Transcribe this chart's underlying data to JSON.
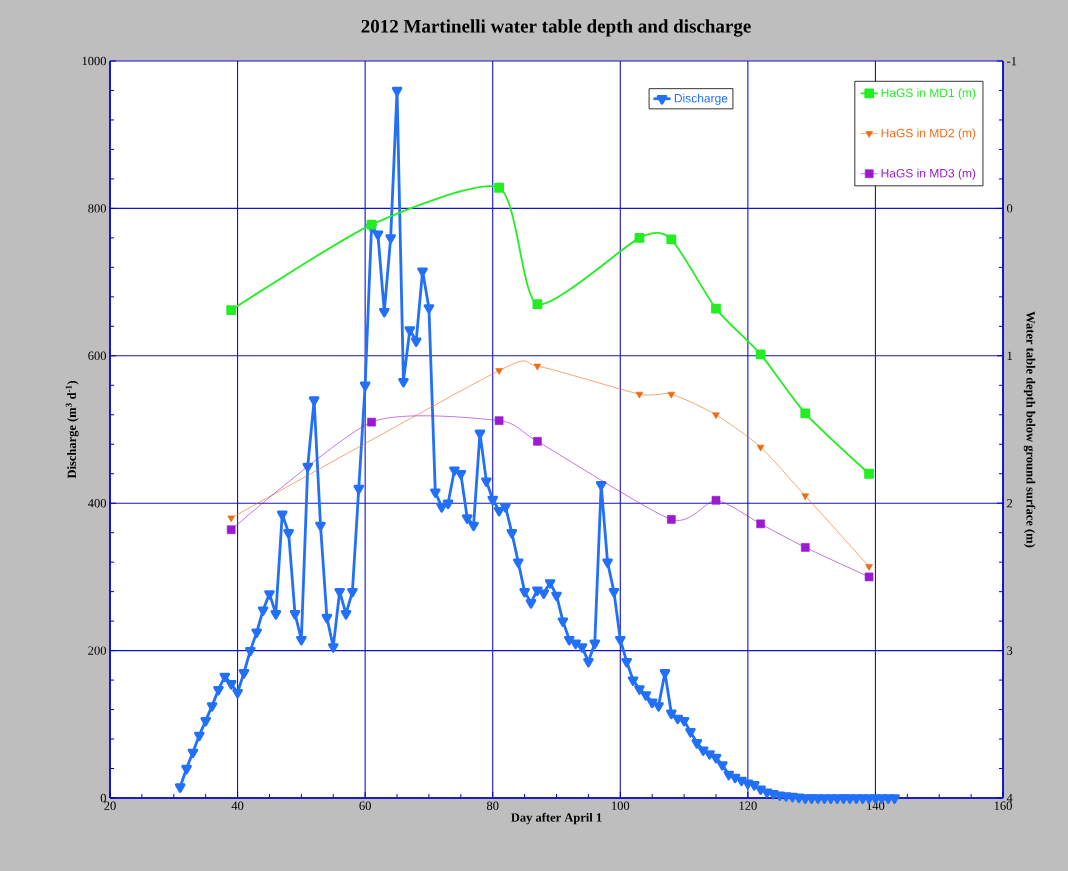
{
  "chart_data": {
    "type": "line",
    "title": "2012 Martinelli water table depth and discharge",
    "xlabel": "Day after April 1",
    "ylabel": "Discharge (m$^{3}$ d$^{-1}$)",
    "y2label": "Water table depth below ground surface  (m)",
    "xlim": [
      20,
      160
    ],
    "xticks": [
      20,
      40,
      60,
      80,
      100,
      120,
      140,
      160
    ],
    "ylim": [
      0,
      1000
    ],
    "yticks": [
      0,
      200,
      400,
      600,
      800,
      1000
    ],
    "y2lim": [
      4,
      -1
    ],
    "y2ticks": [
      -1,
      0,
      1,
      2,
      3,
      4
    ],
    "grid": true,
    "legend": "top right",
    "series": [
      {
        "name": "Discharge",
        "color": "#2270f8",
        "marker": "triangle",
        "x": [
          31,
          32,
          33,
          34,
          35,
          36,
          37,
          38,
          39,
          40,
          41,
          42,
          43,
          44,
          45,
          46,
          47,
          48,
          49,
          50,
          51,
          52,
          53,
          54,
          55,
          56,
          57,
          58,
          59,
          60,
          61,
          62,
          63,
          64,
          65,
          66,
          67,
          68,
          69,
          70,
          71,
          72,
          73,
          74,
          75,
          76,
          77,
          78,
          79,
          80,
          81,
          82,
          83,
          84,
          85,
          86,
          87,
          88,
          89,
          90,
          91,
          92,
          93,
          94,
          95,
          96,
          97,
          98,
          99,
          100,
          101,
          102,
          103,
          104,
          105,
          106,
          107,
          108,
          109,
          110,
          111,
          112,
          113,
          114,
          115,
          116,
          117,
          118,
          119,
          120,
          121,
          122,
          123,
          124,
          125,
          126,
          127,
          128,
          129,
          130,
          131,
          132,
          133,
          134,
          135,
          136,
          137,
          138,
          139,
          140,
          141,
          142,
          143
        ],
        "values": [
          15,
          40,
          62,
          85,
          105,
          125,
          147,
          165,
          155,
          143,
          170,
          200,
          225,
          255,
          277,
          250,
          385,
          360,
          250,
          215,
          450,
          540,
          370,
          245,
          205,
          280,
          250,
          280,
          420,
          560,
          775,
          765,
          660,
          760,
          960,
          565,
          635,
          620,
          715,
          665,
          415,
          395,
          400,
          445,
          440,
          380,
          370,
          495,
          430,
          405,
          390,
          395,
          360,
          320,
          280,
          265,
          282,
          278,
          292,
          275,
          240,
          215,
          210,
          205,
          185,
          210,
          425,
          320,
          280,
          215,
          185,
          160,
          148,
          140,
          130,
          125,
          170,
          115,
          108,
          105,
          90,
          75,
          65,
          60,
          55,
          45,
          32,
          28,
          24,
          20,
          18,
          12,
          8,
          6,
          4,
          3,
          2,
          1,
          0,
          0,
          0,
          0,
          0,
          0,
          0,
          0,
          0,
          0,
          0,
          0,
          0,
          0,
          0
        ]
      },
      {
        "name": "HaGS in MD1 (m)",
        "color": "#22ee22",
        "marker": "square",
        "axis": "y2",
        "x": [
          39,
          61,
          81,
          87,
          103,
          108,
          115,
          122,
          129,
          139
        ],
        "values": [
          0.69,
          0.11,
          -0.14,
          0.65,
          0.2,
          0.21,
          0.68,
          0.99,
          1.39,
          1.8
        ]
      },
      {
        "name": "HaGS in MD2 (m)",
        "color": "#f06a10",
        "marker": "triangle",
        "axis": "y2",
        "x": [
          39,
          61,
          81,
          87,
          103,
          108,
          115,
          122,
          129,
          139
        ],
        "values": [
          2.1,
          null,
          1.1,
          1.07,
          1.26,
          1.26,
          1.4,
          1.62,
          1.95,
          2.43
        ]
      },
      {
        "name": "HaGS in MD3 (m)",
        "color": "#9a1ad0",
        "marker": "square",
        "axis": "y2",
        "x": [
          39,
          61,
          81,
          87,
          108,
          115,
          122,
          129,
          139
        ],
        "values": [
          2.18,
          1.45,
          1.44,
          1.58,
          2.11,
          1.98,
          2.14,
          2.3,
          2.5
        ]
      }
    ]
  }
}
